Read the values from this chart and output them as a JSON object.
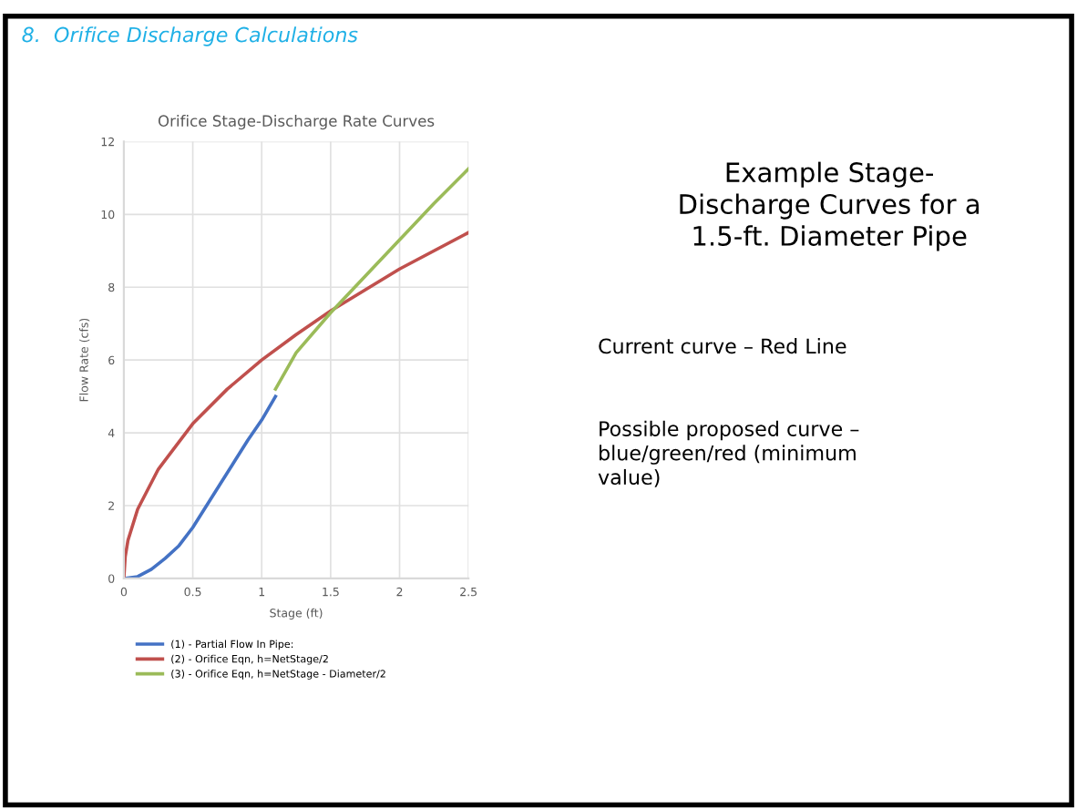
{
  "chart_data": {
    "type": "line",
    "title": "Orifice Stage-Discharge Rate Curves",
    "xlabel": "Stage (ft)",
    "ylabel": "Flow Rate (cfs)",
    "xlim": [
      0,
      2.5
    ],
    "xticks": [
      0,
      0.5,
      1,
      1.5,
      2,
      2.5
    ],
    "ylim": [
      0,
      12
    ],
    "yticks": [
      0,
      2,
      4,
      6,
      8,
      10,
      12
    ],
    "grid": true,
    "legend": "bottom",
    "marker": "none",
    "line_style": "solid",
    "series": [
      {
        "name": "(1) - Partial Flow In Pipe:",
        "color": "#4472c4",
        "x": [
          0,
          0.1,
          0.2,
          0.3,
          0.4,
          0.5,
          0.6,
          0.7,
          0.8,
          0.9,
          1.0,
          1.1
        ],
        "values": [
          0,
          0.05,
          0.25,
          0.55,
          0.9,
          1.4,
          2.0,
          2.6,
          3.2,
          3.8,
          4.35,
          5.0
        ]
      },
      {
        "name": "(2) - Orifice Eqn, h=NetStage/2",
        "color": "#c0504d",
        "x": [
          0,
          0.01,
          0.03,
          0.1,
          0.25,
          0.5,
          0.75,
          1.0,
          1.25,
          1.5,
          2.0,
          2.5
        ],
        "values": [
          0,
          0.6,
          1.05,
          1.9,
          3.0,
          4.25,
          5.2,
          6.0,
          6.7,
          7.35,
          8.5,
          9.5
        ]
      },
      {
        "name": "(3) - Orifice Eqn, h=NetStage - Diameter/2",
        "color": "#9bbb59",
        "x": [
          1.1,
          1.25,
          1.5,
          1.75,
          2.0,
          2.25,
          2.5
        ],
        "values": [
          5.2,
          6.2,
          7.3,
          8.3,
          9.3,
          10.3,
          11.25
        ]
      }
    ],
    "annotations": [
      "8.  Orifice Discharge Calculations",
      "Example Stage-\nDischarge Curves for a\n1.5-ft. Diameter Pipe",
      "Current curve – Red Line",
      "Possible proposed curve –\nblue/green/red (minimum\nvalue)"
    ]
  }
}
